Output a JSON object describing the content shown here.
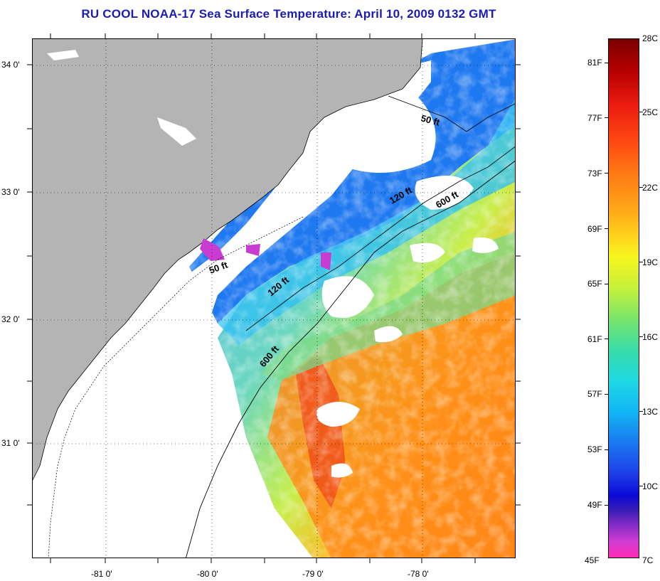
{
  "title": "RU COOL  NOAA-17  Sea Surface Temperature:  April 10, 2009 0132 GMT",
  "map": {
    "lat_labels": [
      "34 0'",
      "33 0'",
      "32 0'",
      "31 0'"
    ],
    "lon_labels": [
      "-81 0'",
      "-80 0'",
      "-79 0'",
      "-78 0'"
    ],
    "isobath_labels": [
      "50 ft",
      "120 ft",
      "600 ft",
      "50 ft",
      "120 ft",
      "600 ft"
    ],
    "colors": {
      "land": "#b4b4b4",
      "cloud": "#ffffff",
      "cold": "#1e64f0",
      "warm": "#ff7a14"
    }
  },
  "colorbar": {
    "fahrenheit_labels": [
      "81F",
      "77F",
      "73F",
      "69F",
      "65F",
      "61F",
      "57F",
      "53F",
      "49F",
      "45F"
    ],
    "celsius_labels": [
      "28C",
      "25C",
      "22C",
      "19C",
      "16C",
      "13C",
      "10C",
      "7C"
    ]
  }
}
